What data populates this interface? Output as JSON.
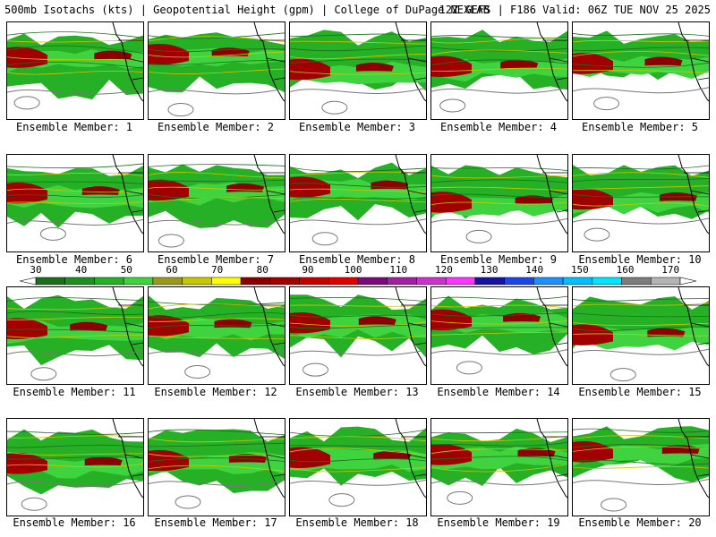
{
  "header": {
    "left": "500mb Isotachs (kts) | Geopotential Height (gpm) | College of DuPage NEXLAB",
    "right": "12Z GEFS | F186 Valid: 06Z TUE NOV 25 2025"
  },
  "member_prefix": "Ensemble Member:",
  "members": [
    "1",
    "2",
    "3",
    "4",
    "5",
    "6",
    "7",
    "8",
    "9",
    "10",
    "11",
    "12",
    "13",
    "14",
    "15",
    "16",
    "17",
    "18",
    "19",
    "20"
  ],
  "colorbar": {
    "labels": [
      "30",
      "40",
      "50",
      "60",
      "70",
      "80",
      "90",
      "100",
      "110",
      "120",
      "130",
      "140",
      "150",
      "160",
      "170"
    ],
    "colors": [
      "#1c6e1c",
      "#1e8f1e",
      "#26b026",
      "#3fd43f",
      "#9a9a18",
      "#c8c800",
      "#ffff00",
      "#8b0000",
      "#a00000",
      "#c40000",
      "#e00000",
      "#7a0a7a",
      "#a020a0",
      "#cc33cc",
      "#ff33ff",
      "#1414a0",
      "#1e46e6",
      "#1e90ff",
      "#00bfff",
      "#00e5ff",
      "#7d7d7d",
      "#b4b4b4"
    ]
  }
}
